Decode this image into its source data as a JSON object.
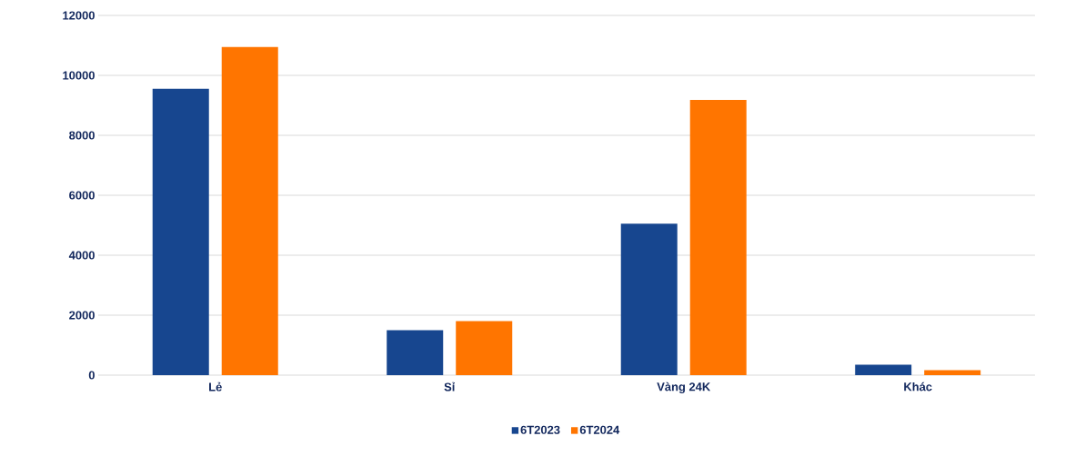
{
  "chart_data": {
    "type": "bar",
    "categories": [
      "Lẻ",
      "Sỉ",
      "Vàng 24K",
      "Khác"
    ],
    "series": [
      {
        "name": "6T2023",
        "color": "#17468f",
        "values": [
          9550,
          1500,
          5050,
          350
        ]
      },
      {
        "name": "6T2024",
        "color": "#ff7500",
        "values": [
          10950,
          1800,
          9180,
          170
        ]
      }
    ],
    "ylim": [
      0,
      12000
    ],
    "yticks": [
      0,
      2000,
      4000,
      6000,
      8000,
      10000,
      12000
    ],
    "grid": "y",
    "legend": "bottom"
  }
}
